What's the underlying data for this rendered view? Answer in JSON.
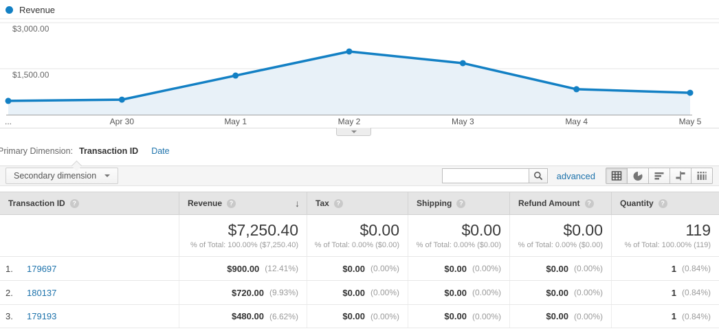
{
  "chart_data": {
    "type": "line",
    "title": "Revenue",
    "x": [
      "...",
      "Apr 30",
      "May 1",
      "May 2",
      "May 3",
      "May 4",
      "May 5"
    ],
    "series": [
      {
        "name": "Revenue",
        "values": [
          450,
          490,
          1275,
          2060,
          1680,
          830,
          715
        ]
      }
    ],
    "ylim": [
      0,
      3000
    ],
    "y_ticks": [
      {
        "label": "$3,000.00",
        "value": 3000
      },
      {
        "label": "$1,500.00",
        "value": 1500
      }
    ],
    "grid": true,
    "legend_position": "top-left",
    "line_color": "#1380c4",
    "area_color": "#e8f1f8",
    "axis_color": "#9e9e9e"
  },
  "dims": {
    "label": "Primary Dimension:",
    "selected": "Transaction ID",
    "alternatives": [
      "Date"
    ]
  },
  "toolbar": {
    "secondary_dimension_label": "Secondary dimension",
    "search_value": "",
    "advanced_label": "advanced",
    "selected_view": "table-view",
    "view_buttons": [
      "table-view",
      "percentage-view",
      "performance-view",
      "comparison-view",
      "pivot-view"
    ]
  },
  "table": {
    "columns": [
      {
        "label": "Transaction ID",
        "help": true
      },
      {
        "label": "Revenue",
        "help": true,
        "sort": "desc"
      },
      {
        "label": "Tax",
        "help": true
      },
      {
        "label": "Shipping",
        "help": true
      },
      {
        "label": "Refund Amount",
        "help": true
      },
      {
        "label": "Quantity",
        "help": true
      }
    ],
    "totals": [
      {
        "value": "",
        "sub": ""
      },
      {
        "value": "$7,250.40",
        "sub": "% of Total: 100.00% ($7,250.40)"
      },
      {
        "value": "$0.00",
        "sub": "% of Total: 0.00% ($0.00)"
      },
      {
        "value": "$0.00",
        "sub": "% of Total: 0.00% ($0.00)"
      },
      {
        "value": "$0.00",
        "sub": "% of Total: 0.00% ($0.00)"
      },
      {
        "value": "119",
        "sub": "% of Total: 100.00% (119)"
      }
    ],
    "rows": [
      {
        "index": "1.",
        "id": "179697",
        "cells": [
          {
            "value": "$900.00",
            "pct": "(12.41%)"
          },
          {
            "value": "$0.00",
            "pct": "(0.00%)"
          },
          {
            "value": "$0.00",
            "pct": "(0.00%)"
          },
          {
            "value": "$0.00",
            "pct": "(0.00%)"
          },
          {
            "value": "1",
            "pct": "(0.84%)"
          }
        ]
      },
      {
        "index": "2.",
        "id": "180137",
        "cells": [
          {
            "value": "$720.00",
            "pct": "(9.93%)"
          },
          {
            "value": "$0.00",
            "pct": "(0.00%)"
          },
          {
            "value": "$0.00",
            "pct": "(0.00%)"
          },
          {
            "value": "$0.00",
            "pct": "(0.00%)"
          },
          {
            "value": "1",
            "pct": "(0.84%)"
          }
        ]
      },
      {
        "index": "3.",
        "id": "179193",
        "cells": [
          {
            "value": "$480.00",
            "pct": "(6.62%)"
          },
          {
            "value": "$0.00",
            "pct": "(0.00%)"
          },
          {
            "value": "$0.00",
            "pct": "(0.00%)"
          },
          {
            "value": "$0.00",
            "pct": "(0.00%)"
          },
          {
            "value": "1",
            "pct": "(0.84%)"
          }
        ]
      }
    ]
  }
}
